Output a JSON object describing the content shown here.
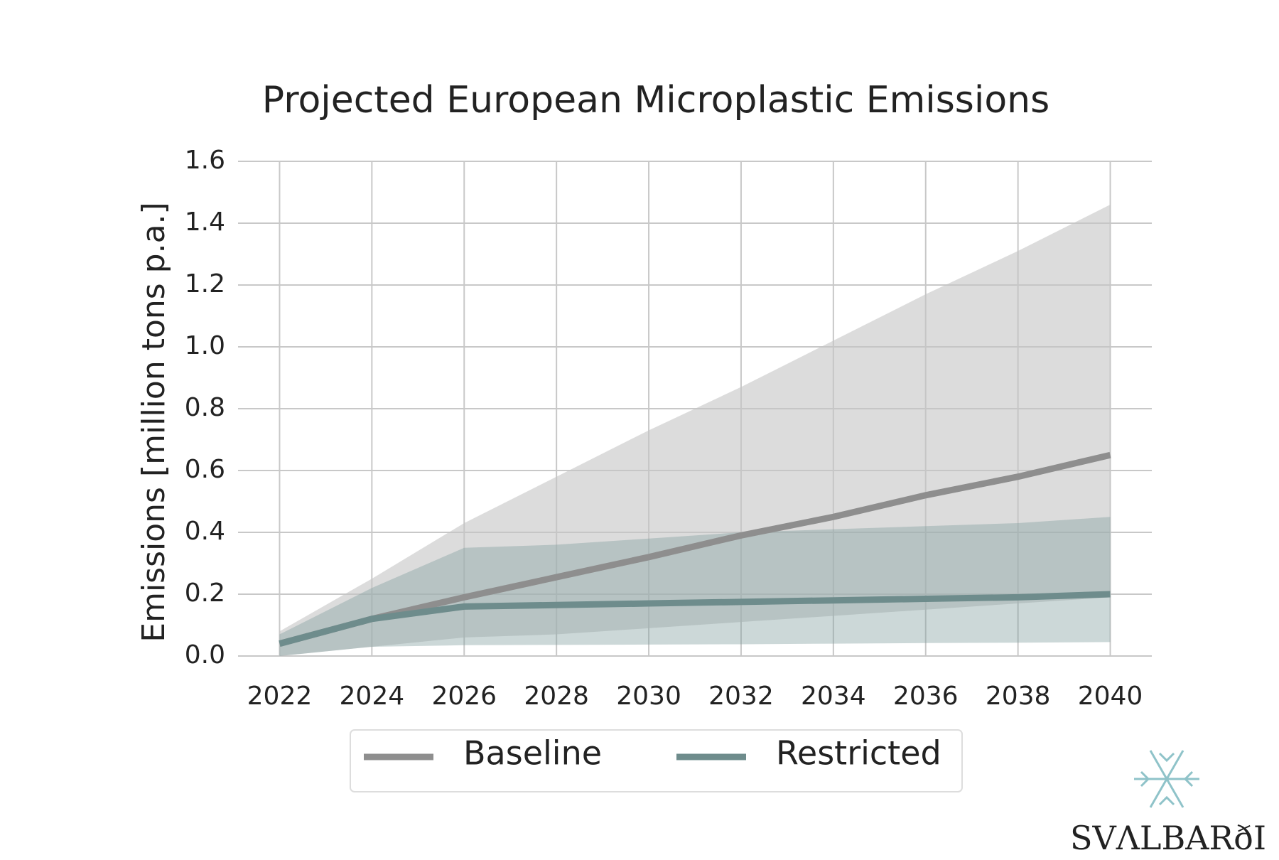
{
  "chart_data": {
    "type": "line",
    "title": "Projected European Microplastic Emissions",
    "y_label": "Emissions [million tons p.a.]",
    "x": [
      2022,
      2024,
      2026,
      2028,
      2030,
      2032,
      2034,
      2036,
      2038,
      2040
    ],
    "series": [
      {
        "name": "Baseline",
        "color": "#8e8e8e",
        "band_color": "#c4c4c4",
        "values": [
          0.04,
          0.12,
          0.19,
          0.255,
          0.32,
          0.39,
          0.45,
          0.52,
          0.58,
          0.65
        ],
        "upper": [
          0.08,
          0.25,
          0.43,
          0.58,
          0.73,
          0.87,
          1.02,
          1.17,
          1.31,
          1.46
        ],
        "lower": [
          0.0,
          0.03,
          0.06,
          0.07,
          0.09,
          0.11,
          0.13,
          0.15,
          0.17,
          0.19
        ]
      },
      {
        "name": "Restricted",
        "color": "#6e8c8c",
        "band_color": "#7f9e9e",
        "values": [
          0.04,
          0.12,
          0.16,
          0.165,
          0.17,
          0.175,
          0.18,
          0.185,
          0.19,
          0.2
        ],
        "upper": [
          0.07,
          0.22,
          0.35,
          0.36,
          0.38,
          0.4,
          0.41,
          0.42,
          0.43,
          0.45
        ],
        "lower": [
          0.0,
          0.03,
          0.035,
          0.036,
          0.037,
          0.038,
          0.04,
          0.042,
          0.043,
          0.045
        ]
      }
    ],
    "xlim": [
      2021.1,
      2040.9
    ],
    "ylim": [
      0,
      1.6
    ],
    "xticks": [
      2022,
      2024,
      2026,
      2028,
      2030,
      2032,
      2034,
      2036,
      2038,
      2040
    ],
    "yticks": [
      {
        "value": 0,
        "label": "0.0"
      },
      0.2,
      0.4,
      0.6,
      0.8,
      {
        "value": 1,
        "label": "1.0"
      },
      1.2,
      1.4,
      1.6
    ],
    "grid": true,
    "legend": "bottom",
    "logo": "SVΛLBARðI"
  }
}
